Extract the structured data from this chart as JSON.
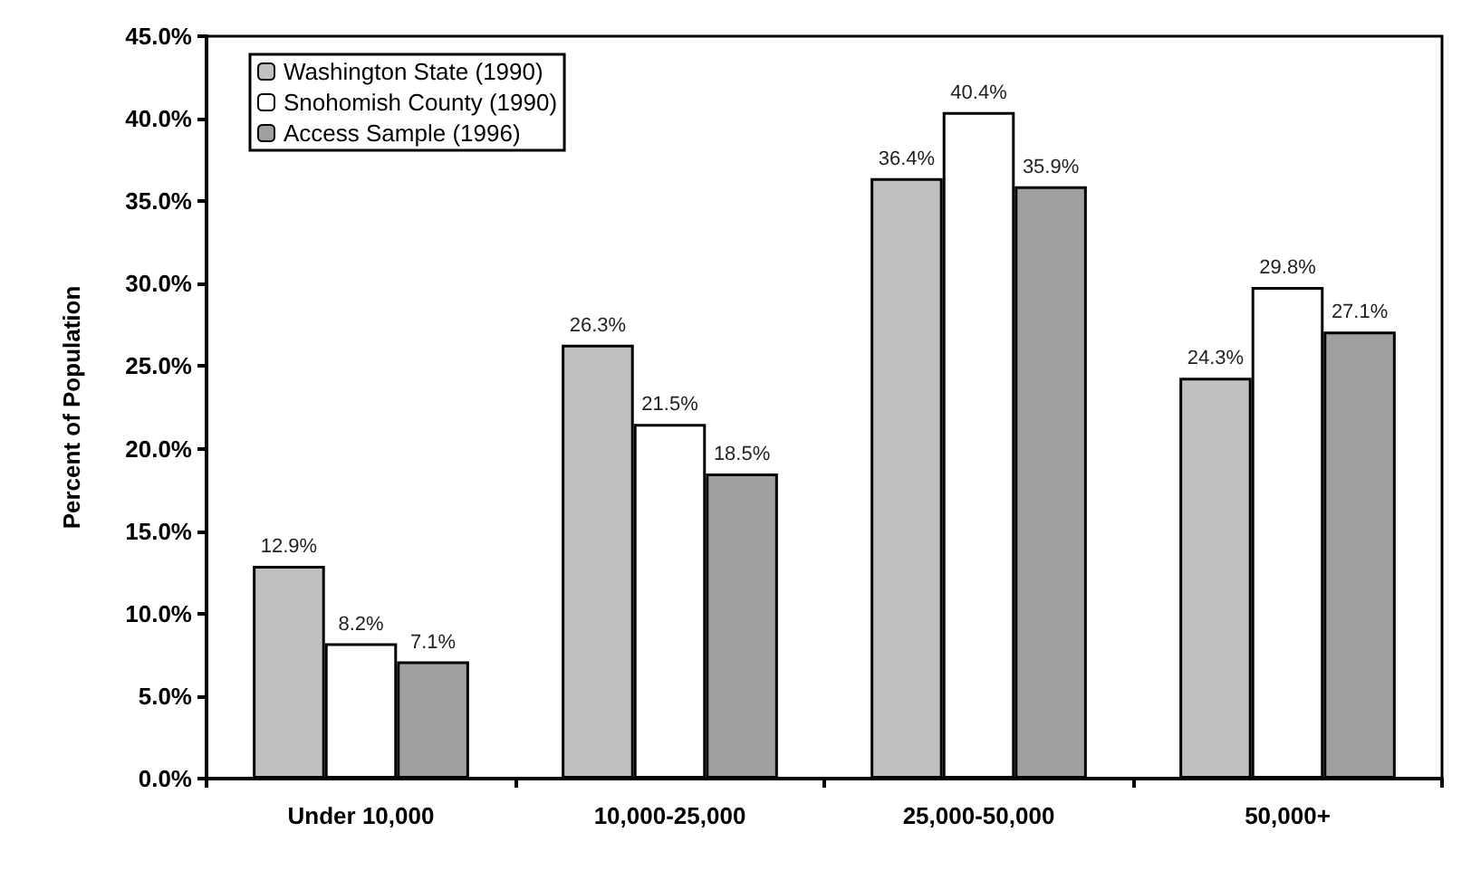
{
  "chart_data": {
    "type": "bar",
    "ylabel": "Percent of Population",
    "categories": [
      "Under 10,000",
      "10,000-25,000",
      "25,000-50,000",
      "50,000+"
    ],
    "series": [
      {
        "name": "Washington State (1990)",
        "color": "#c0c0c0",
        "values": [
          12.9,
          26.3,
          36.4,
          24.3
        ],
        "value_labels": [
          "12.9%",
          "26.3%",
          "36.4%",
          "24.3%"
        ]
      },
      {
        "name": "Snohomish County (1990)",
        "color": "#ffffff",
        "values": [
          8.2,
          21.5,
          40.4,
          29.8
        ],
        "value_labels": [
          "8.2%",
          "21.5%",
          "40.4%",
          "29.8%"
        ]
      },
      {
        "name": "Access Sample (1996)",
        "color": "#a0a0a0",
        "values": [
          7.1,
          18.5,
          35.9,
          27.1
        ],
        "value_labels": [
          "7.1%",
          "18.5%",
          "35.9%",
          "27.1%"
        ]
      }
    ],
    "ylim": [
      0,
      45
    ],
    "yticks": [
      {
        "value": 0,
        "label": "0.0%"
      },
      {
        "value": 5,
        "label": "5.0%"
      },
      {
        "value": 10,
        "label": "10.0%"
      },
      {
        "value": 15,
        "label": "15.0%"
      },
      {
        "value": 20,
        "label": "20.0%"
      },
      {
        "value": 25,
        "label": "25.0%"
      },
      {
        "value": 30,
        "label": "30.0%"
      },
      {
        "value": 35,
        "label": "35.0%"
      },
      {
        "value": 40,
        "label": "40.0%"
      },
      {
        "value": 45,
        "label": "45.0%"
      }
    ],
    "grid": false,
    "legend": "top left"
  }
}
